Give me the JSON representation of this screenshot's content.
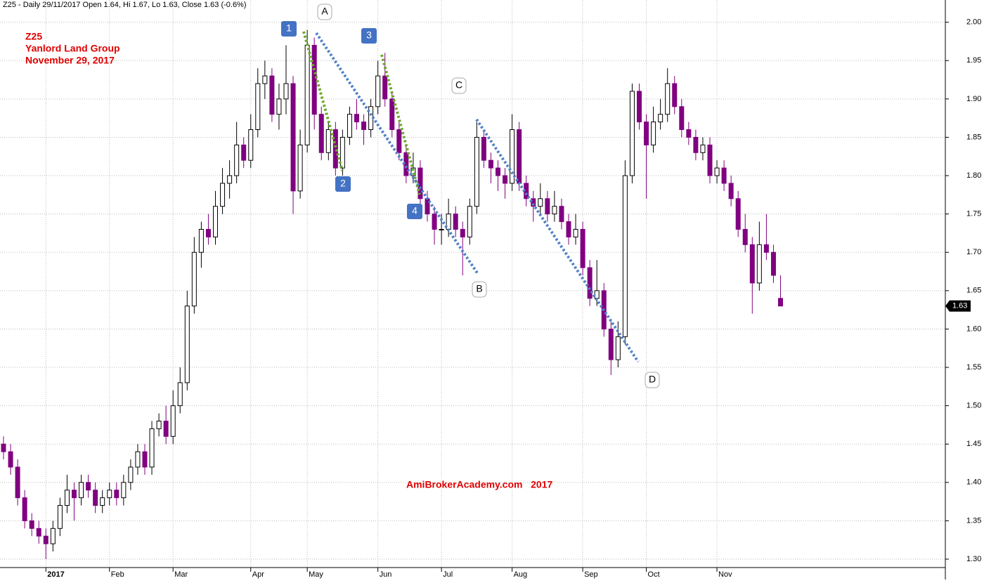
{
  "chart_data": {
    "type": "candlestick",
    "title": "Z25 - Daily 29/11/2017 Open 1.64, Hi 1.67, Lo 1.63, Close 1.63 (-0.6%)",
    "annotations": [
      "Z25",
      "Yanlord Land Group",
      "November 29, 2017"
    ],
    "watermark": "AmiBrokerAcademy.com   2017",
    "pattern_labels": [
      "A",
      "B",
      "C",
      "D"
    ],
    "wave_labels": [
      "1",
      "2",
      "3",
      "4"
    ],
    "up_color": "#ffffff",
    "down_color": "#800080",
    "grid": true,
    "ylim": [
      1.289,
      2.029
    ],
    "yticks": [
      {
        "value": 1.3,
        "label": "1.30"
      },
      1.35,
      {
        "value": 1.4,
        "label": "1.40"
      },
      1.45,
      {
        "value": 1.5,
        "label": "1.50"
      },
      1.55,
      {
        "value": 1.6,
        "label": "1.60"
      },
      1.65,
      {
        "value": 1.7,
        "label": "1.70"
      },
      1.75,
      {
        "value": 1.8,
        "label": "1.80"
      },
      1.85,
      {
        "value": 1.9,
        "label": "1.90"
      },
      1.95,
      {
        "value": 2.0,
        "label": "2.00"
      }
    ],
    "categories": [
      null,
      null,
      null,
      null,
      null,
      null,
      "2017",
      null,
      null,
      null,
      null,
      null,
      null,
      null,
      null,
      "Feb",
      null,
      null,
      null,
      null,
      null,
      null,
      null,
      null,
      "Mar",
      null,
      null,
      null,
      null,
      null,
      null,
      null,
      null,
      null,
      null,
      "Apr",
      null,
      null,
      null,
      null,
      null,
      null,
      null,
      "May",
      null,
      null,
      null,
      null,
      null,
      null,
      null,
      null,
      null,
      "Jun",
      null,
      null,
      null,
      null,
      null,
      null,
      null,
      null,
      "Jul",
      null,
      null,
      null,
      null,
      null,
      null,
      null,
      null,
      null,
      "Aug",
      null,
      null,
      null,
      null,
      null,
      null,
      null,
      null,
      null,
      "Sep",
      null,
      null,
      null,
      null,
      null,
      null,
      null,
      null,
      "Oct",
      null,
      null,
      null,
      null,
      null,
      null,
      null,
      null,
      null,
      "Nov",
      null,
      null,
      null,
      null,
      null,
      null,
      null,
      null,
      null
    ],
    "candles": [
      [
        1.45,
        1.46,
        1.43,
        1.44
      ],
      [
        1.44,
        1.45,
        1.41,
        1.42
      ],
      [
        1.42,
        1.43,
        1.37,
        1.38
      ],
      [
        1.38,
        1.39,
        1.34,
        1.35
      ],
      [
        1.35,
        1.36,
        1.33,
        1.34
      ],
      [
        1.34,
        1.35,
        1.32,
        1.33
      ],
      [
        1.33,
        1.34,
        1.3,
        1.32
      ],
      [
        1.32,
        1.35,
        1.31,
        1.34
      ],
      [
        1.34,
        1.38,
        1.33,
        1.37
      ],
      [
        1.37,
        1.41,
        1.36,
        1.39
      ],
      [
        1.39,
        1.4,
        1.35,
        1.38
      ],
      [
        1.38,
        1.41,
        1.37,
        1.4
      ],
      [
        1.4,
        1.41,
        1.38,
        1.39
      ],
      [
        1.39,
        1.4,
        1.36,
        1.37
      ],
      [
        1.37,
        1.39,
        1.36,
        1.38
      ],
      [
        1.38,
        1.4,
        1.37,
        1.39
      ],
      [
        1.39,
        1.4,
        1.37,
        1.38
      ],
      [
        1.38,
        1.41,
        1.37,
        1.4
      ],
      [
        1.4,
        1.43,
        1.39,
        1.42
      ],
      [
        1.42,
        1.45,
        1.41,
        1.44
      ],
      [
        1.44,
        1.45,
        1.41,
        1.42
      ],
      [
        1.42,
        1.48,
        1.41,
        1.47
      ],
      [
        1.47,
        1.49,
        1.46,
        1.48
      ],
      [
        1.48,
        1.5,
        1.45,
        1.46
      ],
      [
        1.46,
        1.52,
        1.45,
        1.5
      ],
      [
        1.5,
        1.55,
        1.49,
        1.53
      ],
      [
        1.53,
        1.65,
        1.52,
        1.63
      ],
      [
        1.63,
        1.72,
        1.62,
        1.7
      ],
      [
        1.7,
        1.74,
        1.68,
        1.73
      ],
      [
        1.73,
        1.75,
        1.71,
        1.72
      ],
      [
        1.72,
        1.78,
        1.71,
        1.76
      ],
      [
        1.76,
        1.81,
        1.75,
        1.79
      ],
      [
        1.79,
        1.82,
        1.77,
        1.8
      ],
      [
        1.8,
        1.87,
        1.79,
        1.84
      ],
      [
        1.84,
        1.85,
        1.81,
        1.82
      ],
      [
        1.82,
        1.88,
        1.81,
        1.86
      ],
      [
        1.86,
        1.94,
        1.85,
        1.92
      ],
      [
        1.92,
        1.95,
        1.9,
        1.93
      ],
      [
        1.93,
        1.94,
        1.87,
        1.88
      ],
      [
        1.88,
        1.92,
        1.86,
        1.9
      ],
      [
        1.9,
        1.97,
        1.88,
        1.92
      ],
      [
        1.92,
        1.93,
        1.75,
        1.78
      ],
      [
        1.78,
        1.86,
        1.77,
        1.84
      ],
      [
        1.84,
        1.99,
        1.83,
        1.97
      ],
      [
        1.97,
        1.98,
        1.86,
        1.88
      ],
      [
        1.88,
        1.89,
        1.82,
        1.83
      ],
      [
        1.83,
        1.87,
        1.82,
        1.86
      ],
      [
        1.86,
        1.87,
        1.8,
        1.81
      ],
      [
        1.81,
        1.86,
        1.8,
        1.85
      ],
      [
        1.85,
        1.89,
        1.84,
        1.88
      ],
      [
        1.88,
        1.9,
        1.86,
        1.87
      ],
      [
        1.87,
        1.88,
        1.84,
        1.86
      ],
      [
        1.86,
        1.9,
        1.85,
        1.89
      ],
      [
        1.89,
        1.95,
        1.88,
        1.93
      ],
      [
        1.93,
        1.96,
        1.89,
        1.9
      ],
      [
        1.9,
        1.91,
        1.85,
        1.86
      ],
      [
        1.86,
        1.87,
        1.82,
        1.83
      ],
      [
        1.83,
        1.84,
        1.79,
        1.8
      ],
      [
        1.8,
        1.83,
        1.79,
        1.81
      ],
      [
        1.81,
        1.82,
        1.76,
        1.77
      ],
      [
        1.77,
        1.78,
        1.74,
        1.75
      ],
      [
        1.75,
        1.76,
        1.71,
        1.73
      ],
      [
        1.73,
        1.75,
        1.71,
        1.73
      ],
      [
        1.73,
        1.77,
        1.72,
        1.75
      ],
      [
        1.75,
        1.76,
        1.72,
        1.73
      ],
      [
        1.73,
        1.74,
        1.67,
        1.72
      ],
      [
        1.72,
        1.77,
        1.71,
        1.76
      ],
      [
        1.76,
        1.87,
        1.75,
        1.85
      ],
      [
        1.85,
        1.86,
        1.81,
        1.82
      ],
      [
        1.82,
        1.83,
        1.79,
        1.81
      ],
      [
        1.81,
        1.82,
        1.78,
        1.8
      ],
      [
        1.8,
        1.81,
        1.77,
        1.79
      ],
      [
        1.79,
        1.88,
        1.78,
        1.86
      ],
      [
        1.86,
        1.87,
        1.78,
        1.79
      ],
      [
        1.79,
        1.8,
        1.76,
        1.77
      ],
      [
        1.77,
        1.78,
        1.74,
        1.76
      ],
      [
        1.76,
        1.79,
        1.75,
        1.77
      ],
      [
        1.77,
        1.78,
        1.74,
        1.75
      ],
      [
        1.75,
        1.78,
        1.74,
        1.76
      ],
      [
        1.76,
        1.77,
        1.73,
        1.74
      ],
      [
        1.74,
        1.75,
        1.71,
        1.72
      ],
      [
        1.72,
        1.75,
        1.71,
        1.73
      ],
      [
        1.73,
        1.74,
        1.67,
        1.68
      ],
      [
        1.68,
        1.69,
        1.63,
        1.64
      ],
      [
        1.64,
        1.69,
        1.63,
        1.65
      ],
      [
        1.65,
        1.66,
        1.59,
        1.6
      ],
      [
        1.6,
        1.61,
        1.54,
        1.56
      ],
      [
        1.56,
        1.61,
        1.55,
        1.59
      ],
      [
        1.59,
        1.82,
        1.58,
        1.8
      ],
      [
        1.8,
        1.92,
        1.79,
        1.91
      ],
      [
        1.91,
        1.92,
        1.86,
        1.87
      ],
      [
        1.87,
        1.88,
        1.77,
        1.84
      ],
      [
        1.84,
        1.89,
        1.83,
        1.87
      ],
      [
        1.87,
        1.9,
        1.86,
        1.88
      ],
      [
        1.88,
        1.94,
        1.87,
        1.92
      ],
      [
        1.92,
        1.93,
        1.88,
        1.89
      ],
      [
        1.89,
        1.9,
        1.85,
        1.86
      ],
      [
        1.86,
        1.87,
        1.84,
        1.85
      ],
      [
        1.85,
        1.86,
        1.82,
        1.83
      ],
      [
        1.83,
        1.85,
        1.82,
        1.84
      ],
      [
        1.84,
        1.85,
        1.79,
        1.8
      ],
      [
        1.8,
        1.82,
        1.79,
        1.81
      ],
      [
        1.81,
        1.82,
        1.78,
        1.79
      ],
      [
        1.79,
        1.8,
        1.76,
        1.77
      ],
      [
        1.77,
        1.78,
        1.72,
        1.73
      ],
      [
        1.73,
        1.75,
        1.7,
        1.71
      ],
      [
        1.71,
        1.72,
        1.62,
        1.66
      ],
      [
        1.66,
        1.74,
        1.65,
        1.71
      ],
      [
        1.71,
        1.75,
        1.69,
        1.7
      ],
      [
        1.7,
        1.71,
        1.66,
        1.67
      ],
      [
        1.64,
        1.67,
        1.63,
        1.63
      ]
    ]
  }
}
